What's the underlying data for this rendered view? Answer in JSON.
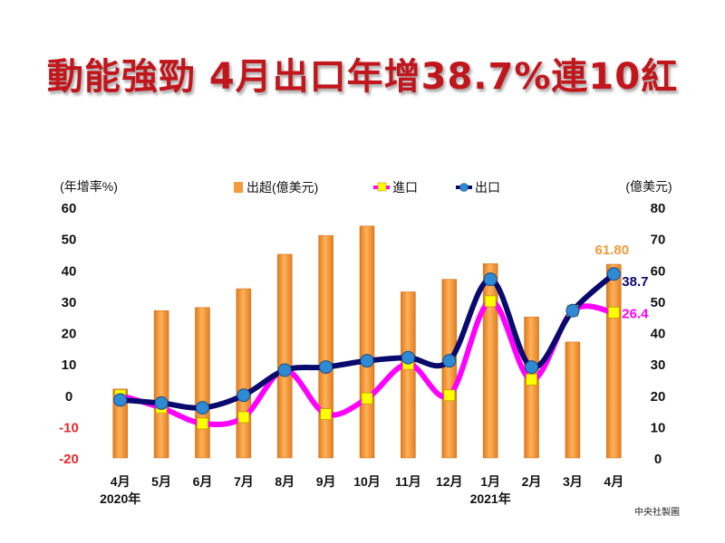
{
  "title": "動能強勁 4月出口年增38.7%連10紅",
  "credit": "中央社製圖",
  "chart_data": {
    "type": "bar+line",
    "categories": [
      "4月",
      "5月",
      "6月",
      "7月",
      "8月",
      "9月",
      "10月",
      "11月",
      "12月",
      "1月",
      "2月",
      "3月",
      "4月"
    ],
    "year_labels": [
      {
        "label": "2020年",
        "category_index": 0
      },
      {
        "label": "2021年",
        "category_index": 9
      }
    ],
    "left_axis": {
      "label": "(年增率%)",
      "range": [
        -20,
        60
      ],
      "ticks": [
        -20,
        -10,
        0,
        10,
        20,
        30,
        40,
        50,
        60
      ]
    },
    "right_axis": {
      "label": "(億美元)",
      "range": [
        0,
        80
      ],
      "ticks": [
        0,
        10,
        20,
        30,
        40,
        50,
        60,
        70,
        80
      ]
    },
    "series": [
      {
        "name": "出超(億美元)",
        "kind": "bar",
        "axis": "right",
        "color": "#f39a3a",
        "values": [
          22,
          47,
          48,
          54,
          65,
          71,
          74,
          53,
          57,
          62,
          45,
          37,
          61.8
        ]
      },
      {
        "name": "進口",
        "kind": "line",
        "axis": "left",
        "color": "#ff00ff",
        "marker_color": "#ffff00",
        "values": [
          0,
          -4,
          -9,
          -7,
          8,
          -6,
          -1,
          10,
          0,
          30,
          5,
          27,
          26.4
        ]
      },
      {
        "name": "出口",
        "kind": "line",
        "axis": "left",
        "color": "#0a0a6e",
        "marker_color": "#2e8bd3",
        "values": [
          -1.5,
          -2.5,
          -4,
          0,
          8,
          9,
          11,
          12,
          11,
          37,
          9,
          27,
          38.7
        ]
      }
    ],
    "data_labels": [
      {
        "text": "61.80",
        "color": "#f39a3a",
        "series": "出超(億美元)"
      },
      {
        "text": "38.7",
        "color": "#0a0a6e",
        "series": "出口"
      },
      {
        "text": "26.4",
        "color": "#ff00ff",
        "series": "進口"
      }
    ],
    "legend_position": "top",
    "grid": false,
    "left_tick_colors": {
      "negative": "#e8262c",
      "non_negative": "#111111"
    }
  }
}
